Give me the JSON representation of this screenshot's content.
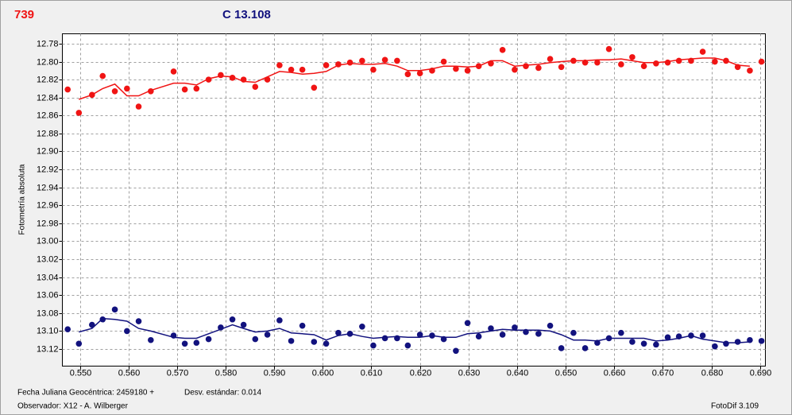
{
  "chart_data": {
    "type": "scatter-trend",
    "y_label": "Fotometría absoluta",
    "footer": {
      "date_label": "Fecha Juliana Geocéntrica: 2459180 +",
      "std_dev": "Desv. estándar: 0.014",
      "observer": "Observador: X12 - A. Wilberger",
      "software": "FotoDif 3.109"
    },
    "xlim": [
      0.5464,
      0.6911
    ],
    "ylim": [
      12.769,
      13.139
    ],
    "y_inverted": true,
    "grid": true,
    "xticks": [
      {
        "value": 0.55,
        "label": "0.550"
      },
      {
        "value": 0.56,
        "label": "0.560"
      },
      {
        "value": 0.57,
        "label": "0.570"
      },
      {
        "value": 0.58,
        "label": "0.580"
      },
      {
        "value": 0.59,
        "label": "0.590"
      },
      {
        "value": 0.6,
        "label": "0.600"
      },
      {
        "value": 0.61,
        "label": "0.610"
      },
      {
        "value": 0.62,
        "label": "0.620"
      },
      {
        "value": 0.63,
        "label": "0.630"
      },
      {
        "value": 0.64,
        "label": "0.640"
      },
      {
        "value": 0.65,
        "label": "0.650"
      },
      {
        "value": 0.66,
        "label": "0.660"
      },
      {
        "value": 0.67,
        "label": "0.670"
      },
      {
        "value": 0.68,
        "label": "0.680"
      },
      {
        "value": 0.69,
        "label": "0.690"
      }
    ],
    "yticks": [
      12.78,
      {
        "value": 12.8,
        "label": "12.80"
      },
      12.82,
      12.84,
      12.86,
      12.88,
      {
        "value": 12.9,
        "label": "12.90"
      },
      12.92,
      12.94,
      12.96,
      12.98,
      {
        "value": 13,
        "label": "13.00"
      },
      13.02,
      13.04,
      13.06,
      13.08,
      {
        "value": 13.1,
        "label": "13.10"
      },
      13.12
    ],
    "x": [
      0.5475,
      0.5498,
      0.5525,
      0.5547,
      0.5572,
      0.5597,
      0.5621,
      0.5646,
      0.5693,
      0.5716,
      0.574,
      0.5765,
      0.579,
      0.5814,
      0.5837,
      0.5861,
      0.5886,
      0.5911,
      0.5935,
      0.5958,
      0.5982,
      0.6007,
      0.6032,
      0.6056,
      0.6081,
      0.6104,
      0.6128,
      0.6153,
      0.6175,
      0.62,
      0.6225,
      0.6249,
      0.6274,
      0.6298,
      0.6321,
      0.6346,
      0.637,
      0.6395,
      0.6418,
      0.6444,
      0.6468,
      0.6491,
      0.6516,
      0.654,
      0.6565,
      0.6589,
      0.6614,
      0.6637,
      0.6661,
      0.6686,
      0.671,
      0.6733,
      0.6758,
      0.6782,
      0.6807,
      0.683,
      0.6854,
      0.6879,
      0.6903
    ],
    "trend_x": [
      0.5498,
      0.5525,
      0.5547,
      0.5572,
      0.5597,
      0.5621,
      0.5646,
      0.5693,
      0.5716,
      0.574,
      0.5765,
      0.579,
      0.5814,
      0.5837,
      0.5861,
      0.5886,
      0.5911,
      0.5935,
      0.5958,
      0.5982,
      0.6007,
      0.6032,
      0.6056,
      0.6081,
      0.6104,
      0.6128,
      0.6153,
      0.6175,
      0.62,
      0.6225,
      0.6249,
      0.6274,
      0.6298,
      0.6321,
      0.6346,
      0.637,
      0.6395,
      0.6418,
      0.6444,
      0.6468,
      0.6491,
      0.6516,
      0.654,
      0.6565,
      0.6589,
      0.6614,
      0.6637,
      0.6661,
      0.6686,
      0.671,
      0.6733,
      0.6758,
      0.6782,
      0.6807,
      0.683,
      0.6854,
      0.6879
    ],
    "series": [
      {
        "name": "739",
        "color": "#f01414",
        "values": [
          12.831,
          12.857,
          12.837,
          12.816,
          12.833,
          12.83,
          12.85,
          12.833,
          12.811,
          12.831,
          12.83,
          12.82,
          12.815,
          12.818,
          12.82,
          12.828,
          12.82,
          12.804,
          12.809,
          12.809,
          12.829,
          12.804,
          12.803,
          12.801,
          12.799,
          12.809,
          12.798,
          12.799,
          12.814,
          12.813,
          12.81,
          12.8,
          12.808,
          12.81,
          12.805,
          12.802,
          12.787,
          12.809,
          12.805,
          12.807,
          12.797,
          12.806,
          12.799,
          12.801,
          12.801,
          12.786,
          12.803,
          12.795,
          12.805,
          12.802,
          12.801,
          12.799,
          12.799,
          12.789,
          12.8,
          12.799,
          12.806,
          12.81,
          12.8
        ],
        "trend_values": [
          12.842,
          12.837,
          12.83,
          12.825,
          12.838,
          12.838,
          12.832,
          12.824,
          12.824,
          12.826,
          12.819,
          12.816,
          12.817,
          12.822,
          12.823,
          12.817,
          12.811,
          12.812,
          12.814,
          12.813,
          12.811,
          12.804,
          12.802,
          12.803,
          12.803,
          12.802,
          12.805,
          12.81,
          12.81,
          12.808,
          12.805,
          12.805,
          12.806,
          12.805,
          12.799,
          12.799,
          12.805,
          12.804,
          12.803,
          12.801,
          12.8,
          12.799,
          12.799,
          12.798,
          12.798,
          12.797,
          12.799,
          12.801,
          12.801,
          12.8,
          12.798,
          12.797,
          12.796,
          12.796,
          12.799,
          12.804,
          12.805
        ]
      },
      {
        "name": "C 13.108",
        "color": "#12127e",
        "values": [
          13.098,
          13.114,
          13.093,
          13.087,
          13.076,
          13.1,
          13.089,
          13.11,
          13.105,
          13.114,
          13.113,
          13.109,
          13.096,
          13.087,
          13.093,
          13.109,
          13.104,
          13.088,
          13.111,
          13.094,
          13.112,
          13.114,
          13.102,
          13.103,
          13.095,
          13.116,
          13.108,
          13.108,
          13.116,
          13.104,
          13.105,
          13.109,
          13.122,
          13.091,
          13.106,
          13.097,
          13.104,
          13.096,
          13.101,
          13.103,
          13.094,
          13.119,
          13.102,
          13.119,
          13.113,
          13.108,
          13.102,
          13.112,
          13.114,
          13.115,
          13.107,
          13.106,
          13.105,
          13.105,
          13.117,
          13.114,
          13.112,
          13.11,
          13.111
        ],
        "trend_values": [
          13.101,
          13.097,
          13.086,
          13.087,
          13.089,
          13.097,
          13.1,
          13.107,
          13.108,
          13.108,
          13.103,
          13.098,
          13.093,
          13.097,
          13.101,
          13.1,
          13.097,
          13.102,
          13.103,
          13.104,
          13.11,
          13.105,
          13.103,
          13.106,
          13.108,
          13.107,
          13.106,
          13.107,
          13.107,
          13.105,
          13.107,
          13.107,
          13.103,
          13.102,
          13.1,
          13.098,
          13.099,
          13.099,
          13.099,
          13.1,
          13.104,
          13.11,
          13.11,
          13.111,
          13.108,
          13.108,
          13.108,
          13.108,
          13.111,
          13.11,
          13.108,
          13.105,
          13.109,
          13.111,
          13.113,
          13.113,
          13.112
        ]
      }
    ]
  }
}
